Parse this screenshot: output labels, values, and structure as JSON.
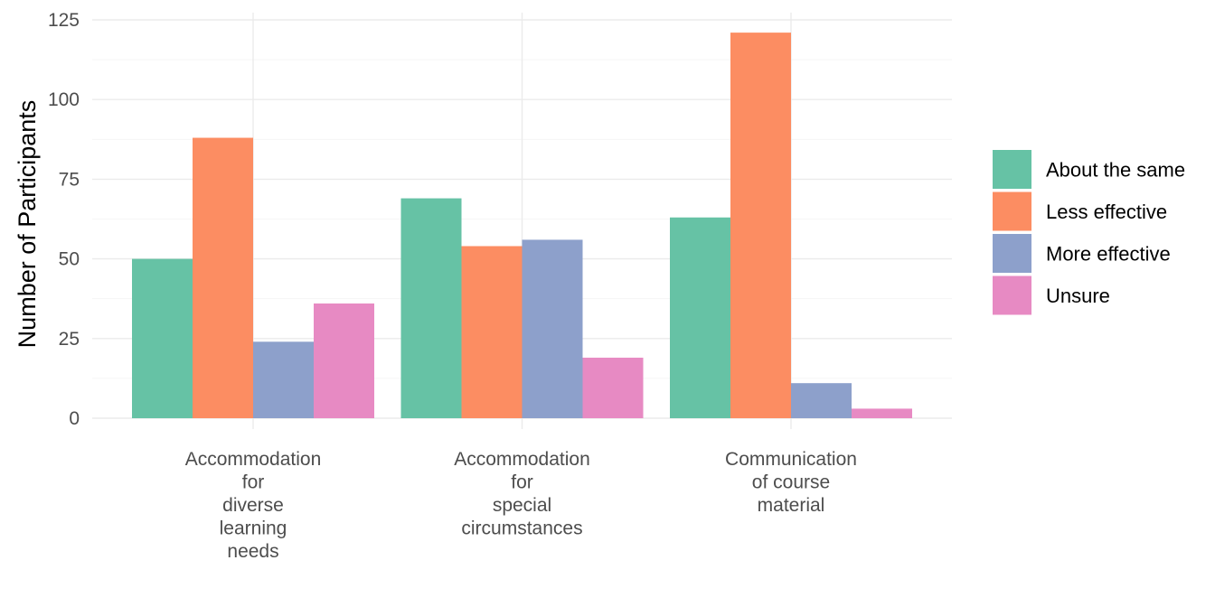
{
  "chart_data": {
    "type": "bar",
    "title": "",
    "xlabel": "",
    "ylabel": "Number of Participants",
    "ylim": [
      0,
      125
    ],
    "yticks": [
      0,
      25,
      50,
      75,
      100,
      125
    ],
    "grid": true,
    "legend_position": "right",
    "categories": [
      [
        "Accommodation",
        "for",
        "diverse",
        "learning",
        "needs"
      ],
      [
        "Accommodation",
        "for",
        "special",
        "circumstances"
      ],
      [
        "Communication",
        "of course",
        "material"
      ]
    ],
    "series": [
      {
        "name": "About the same",
        "color": "#66c2a5",
        "values": [
          50,
          69,
          63
        ]
      },
      {
        "name": "Less effective",
        "color": "#fc8d62",
        "values": [
          88,
          54,
          121
        ]
      },
      {
        "name": "More effective",
        "color": "#8da0cb",
        "values": [
          24,
          56,
          11
        ]
      },
      {
        "name": "Unsure",
        "color": "#e78ac3",
        "values": [
          36,
          19,
          3
        ]
      }
    ]
  }
}
